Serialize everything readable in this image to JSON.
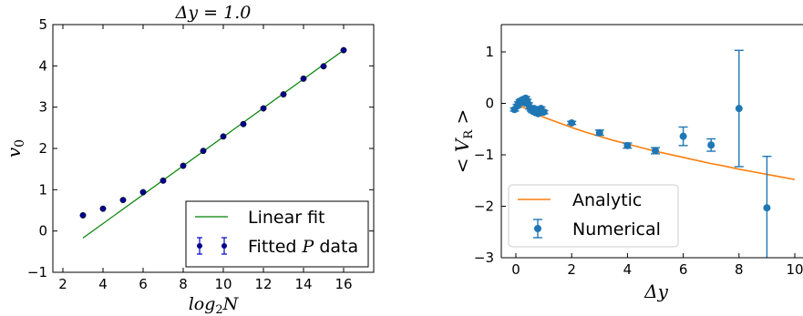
{
  "chart_data": [
    {
      "type": "scatter",
      "title": "Δy = 1.0",
      "xlabel": "log2N",
      "ylabel": "v0",
      "xlim": [
        1.5,
        17.5
      ],
      "ylim": [
        -1,
        5
      ],
      "xticks": [
        "2",
        "4",
        "6",
        "8",
        "10",
        "12",
        "14",
        "16"
      ],
      "yticks": [
        "−1",
        "0",
        "1",
        "2",
        "3",
        "4",
        "5"
      ],
      "legend_position": "lower-right",
      "grid": false,
      "series": [
        {
          "name": "Linear fit",
          "kind": "line",
          "color": "#008000",
          "x": [
            3,
            16
          ],
          "y": [
            -0.17,
            4.38
          ]
        },
        {
          "name": "Fitted P data",
          "kind": "errorbar",
          "color": "#00008b",
          "x": [
            3,
            4,
            5,
            6,
            7,
            8,
            9,
            10,
            11,
            12,
            13,
            14,
            15,
            16
          ],
          "y": [
            0.38,
            0.54,
            0.75,
            0.94,
            1.22,
            1.58,
            1.94,
            2.29,
            2.59,
            2.97,
            3.31,
            3.69,
            3.99,
            4.38
          ]
        }
      ],
      "legend": {
        "line_label": "Linear fit",
        "points_label_prefix": "Fitted ",
        "points_label_symbol": "P",
        "points_label_suffix": " data"
      }
    },
    {
      "type": "scatter",
      "xlabel": "Δy",
      "ylabel": "< VR >",
      "xlim": [
        -0.3,
        10.1
      ],
      "ylim": [
        -3,
        1.5
      ],
      "xticks": [
        "0",
        "2",
        "4",
        "6",
        "8",
        "10"
      ],
      "yticks": [
        "−3",
        "−2",
        "−1",
        "0",
        "1"
      ],
      "legend_position": "lower-left",
      "grid": false,
      "series": [
        {
          "name": "Analytic",
          "kind": "line",
          "color": "#ff7f0e",
          "x": [
            0,
            0.5,
            1,
            1.5,
            2,
            2.5,
            3,
            3.5,
            4,
            4.5,
            5,
            5.5,
            6,
            6.5,
            7,
            7.5,
            8,
            8.5,
            9,
            9.5,
            10
          ],
          "y": [
            0,
            -0.14,
            -0.27,
            -0.37,
            -0.47,
            -0.56,
            -0.64,
            -0.72,
            -0.79,
            -0.86,
            -0.93,
            -0.99,
            -1.05,
            -1.11,
            -1.17,
            -1.22,
            -1.28,
            -1.33,
            -1.38,
            -1.43,
            -1.48
          ]
        },
        {
          "name": "Numerical",
          "kind": "errorbar",
          "color": "#1f77b4",
          "x": [
            -0.05,
            0.05,
            0.1,
            0.15,
            0.2,
            0.25,
            0.3,
            0.35,
            0.4,
            0.45,
            0.5,
            0.55,
            0.6,
            0.65,
            0.7,
            0.75,
            0.8,
            0.85,
            0.9,
            0.95,
            1.0,
            2,
            3,
            4,
            5,
            6,
            7,
            8,
            9
          ],
          "y": [
            -0.12,
            -0.05,
            0.0,
            0.04,
            0.06,
            0.02,
            0.08,
            0.1,
            0.05,
            -0.02,
            -0.08,
            -0.12,
            -0.15,
            -0.1,
            -0.18,
            -0.12,
            -0.2,
            -0.14,
            -0.1,
            -0.16,
            -0.17,
            -0.38,
            -0.57,
            -0.82,
            -0.92,
            -0.64,
            -0.81,
            -0.1,
            -2.03
          ],
          "err": [
            0.03,
            0.03,
            0.03,
            0.03,
            0.03,
            0.03,
            0.03,
            0.03,
            0.03,
            0.03,
            0.03,
            0.03,
            0.03,
            0.03,
            0.03,
            0.03,
            0.03,
            0.03,
            0.03,
            0.03,
            0.03,
            0.03,
            0.05,
            0.05,
            0.06,
            0.18,
            0.12,
            1.13,
            1.0
          ]
        }
      ]
    }
  ]
}
